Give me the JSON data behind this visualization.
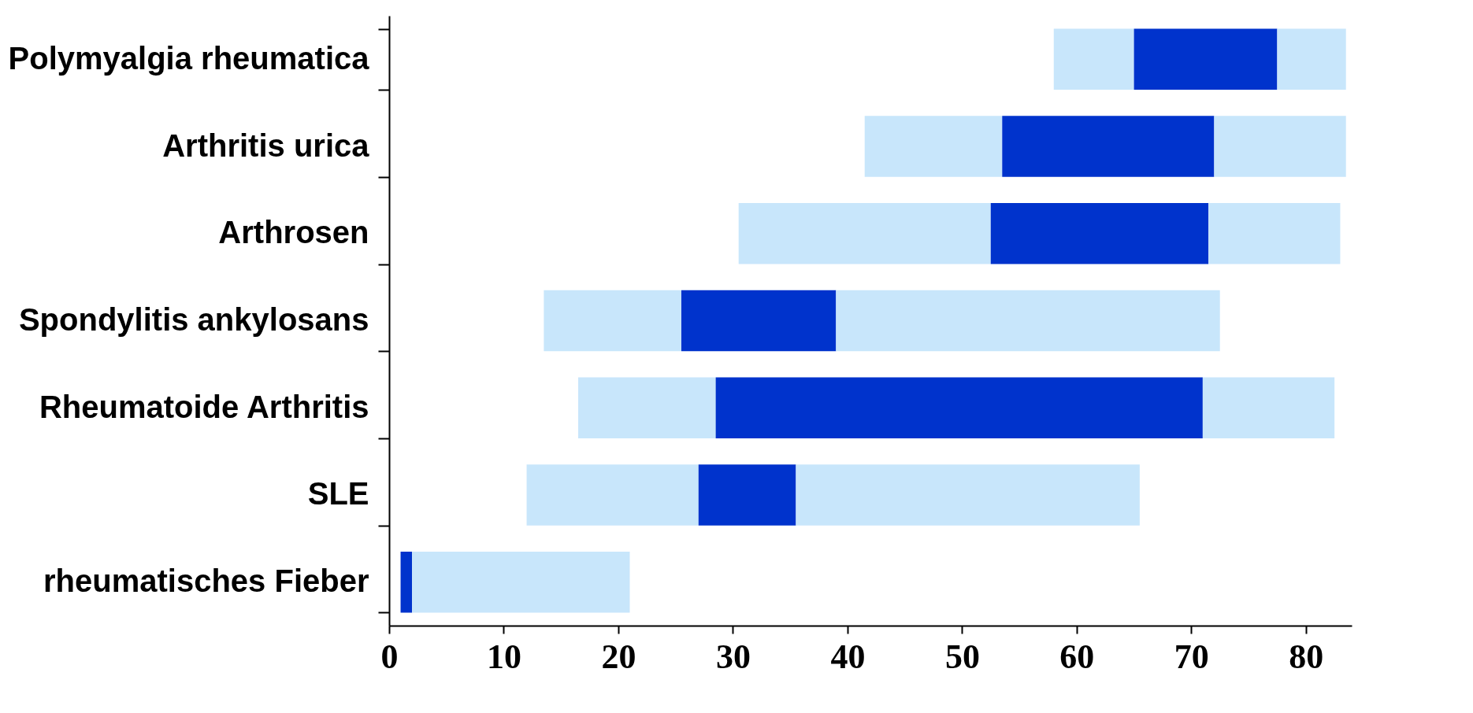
{
  "chart_data": {
    "type": "bar",
    "orientation": "horizontal",
    "categories": [
      "Polymyalgia rheumatica",
      "Arthritis urica",
      "Arthrosen",
      "Spondylitis ankylosans",
      "Rheumatoide Arthritis",
      "SLE",
      "rheumatisches Fieber"
    ],
    "series": [
      {
        "color": "#c8e6fb",
        "base": [
          58,
          41.5,
          30.5,
          13.5,
          16.5,
          12,
          null
        ],
        "values": [
          7,
          12,
          22,
          12,
          12,
          15,
          null
        ]
      },
      {
        "color": "#0033cc",
        "base": [
          65,
          53.5,
          52.5,
          25.5,
          28.5,
          27,
          1
        ],
        "values": [
          12.5,
          18.5,
          19,
          13.5,
          42.5,
          8.5,
          1
        ]
      },
      {
        "color": "#c8e6fb",
        "base": [
          77.5,
          72,
          71.5,
          39,
          71,
          35.5,
          2
        ],
        "values": [
          6,
          11.5,
          11.5,
          33.5,
          11.5,
          30,
          19
        ]
      }
    ],
    "xlim": [
      0,
      84
    ],
    "xticks": [
      0,
      10,
      20,
      30,
      40,
      50,
      60,
      70,
      80
    ],
    "grid": false,
    "legend": false
  }
}
